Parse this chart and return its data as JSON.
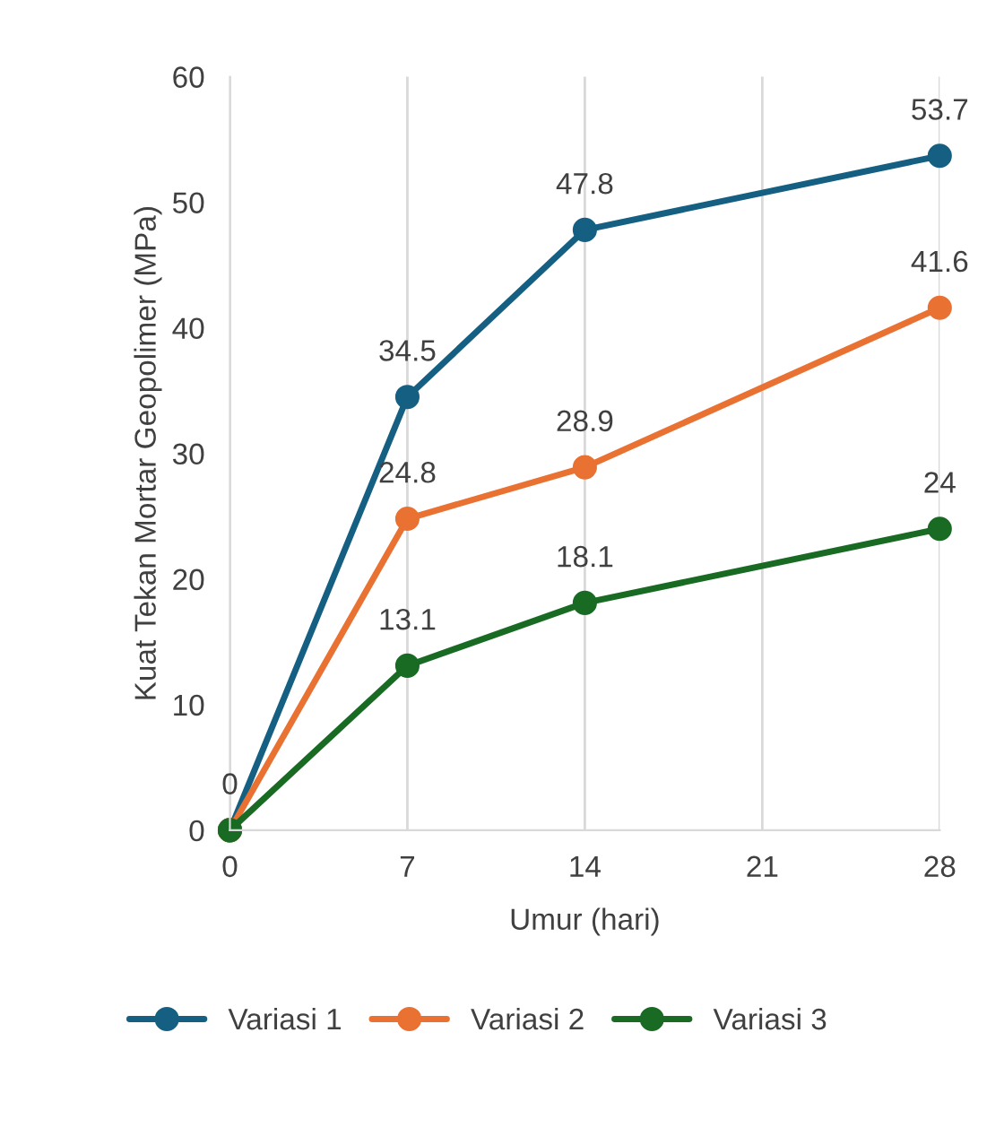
{
  "chart_data": {
    "type": "line",
    "xlabel": "Umur (hari)",
    "ylabel": "Kuat Tekan Mortar Geopolimer (MPa)",
    "x": [
      0,
      7,
      14,
      28
    ],
    "series": [
      {
        "name": "Variasi 1",
        "color": "#156082",
        "values": [
          0,
          34.5,
          47.8,
          53.7
        ],
        "value_labels": [
          "0",
          "34.5",
          "47.8",
          "53.7"
        ]
      },
      {
        "name": "Variasi 2",
        "color": "#e97132",
        "values": [
          0,
          24.8,
          28.9,
          41.6
        ],
        "value_labels": [
          null,
          "24.8",
          "28.9",
          "41.6"
        ]
      },
      {
        "name": "Variasi 3",
        "color": "#196b24",
        "values": [
          0,
          13.1,
          18.1,
          24
        ],
        "value_labels": [
          null,
          "13.1",
          "18.1",
          "24"
        ]
      }
    ],
    "xlim": [
      0,
      28
    ],
    "xticks": [
      0,
      7,
      14,
      21,
      28
    ],
    "ylim": [
      0,
      60
    ],
    "yticks": [
      0,
      10,
      20,
      30,
      40,
      50,
      60
    ],
    "grid": "x",
    "legend": "bottom",
    "marker": "circle",
    "line_style": "solid"
  }
}
